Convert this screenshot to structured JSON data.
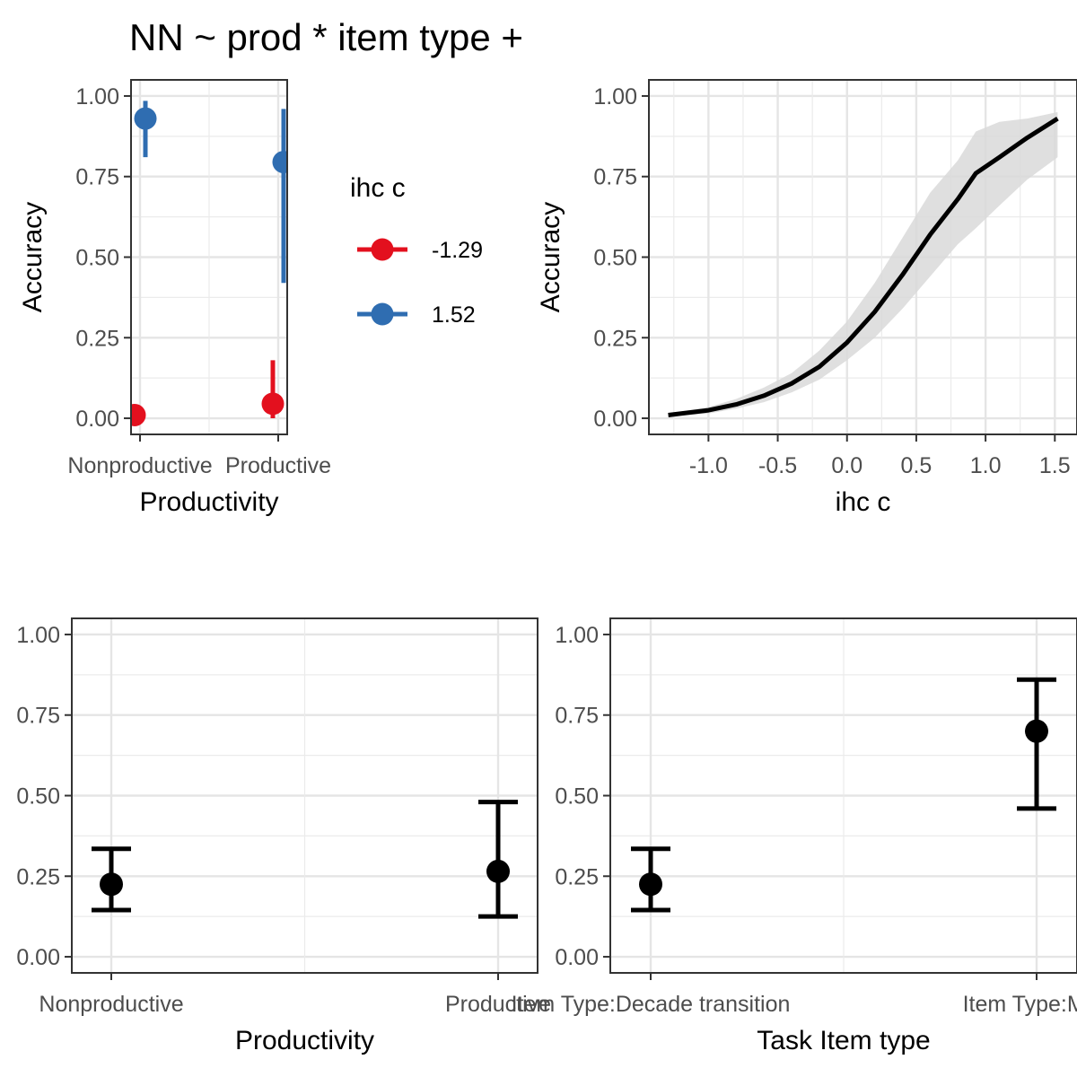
{
  "figure_title": "NN ~ prod * item type +",
  "chart_data": [
    {
      "id": "p1",
      "type": "scatter",
      "subtype": "point-errorbar",
      "xlabel": "Productivity",
      "ylabel": "Accuracy",
      "categories": [
        "Nonproductive",
        "Productive"
      ],
      "ylim": [
        -0.05,
        1.05
      ],
      "yticks": [
        0,
        0.25,
        0.5,
        0.75,
        1
      ],
      "ytick_labels": [
        "0.00",
        "0.25",
        "0.50",
        "0.75",
        "1.00"
      ],
      "grid": true,
      "legend": {
        "title": "ihc c",
        "position": "right"
      },
      "series": [
        {
          "name": "-1.29",
          "color": "#E3101E",
          "points": [
            {
              "x": "Nonproductive",
              "y": 0.01,
              "lo": 0.0,
              "hi": 0.02
            },
            {
              "x": "Productive",
              "y": 0.045,
              "lo": 0.0,
              "hi": 0.18
            }
          ]
        },
        {
          "name": "1.52",
          "color": "#2F6DB1",
          "points": [
            {
              "x": "Nonproductive",
              "y": 0.93,
              "lo": 0.81,
              "hi": 0.985
            },
            {
              "x": "Productive",
              "y": 0.795,
              "lo": 0.42,
              "hi": 0.96
            }
          ]
        }
      ]
    },
    {
      "id": "p2",
      "type": "line",
      "subtype": "line-with-ribbon",
      "xlabel": "ihc c",
      "ylabel": "Accuracy",
      "xlim": [
        -1.43,
        1.66
      ],
      "ylim": [
        -0.05,
        1.05
      ],
      "xticks": [
        -1.0,
        -0.5,
        0.0,
        0.5,
        1.0,
        1.5
      ],
      "xtick_labels": [
        "-1.0",
        "-0.5",
        "0.0",
        "0.5",
        "1.0",
        "1.5"
      ],
      "yticks": [
        0,
        0.25,
        0.5,
        0.75,
        1
      ],
      "ytick_labels": [
        "0.00",
        "0.25",
        "0.50",
        "0.75",
        "1.00"
      ],
      "grid": true,
      "line_color": "#000000",
      "ribbon_color": "#d9d9d9",
      "x": [
        -1.29,
        -1.0,
        -0.8,
        -0.6,
        -0.4,
        -0.2,
        0.0,
        0.2,
        0.4,
        0.6,
        0.8,
        0.93,
        1.1,
        1.3,
        1.52
      ],
      "y": [
        0.01,
        0.025,
        0.043,
        0.07,
        0.108,
        0.16,
        0.235,
        0.33,
        0.445,
        0.57,
        0.68,
        0.76,
        0.81,
        0.87,
        0.93
      ],
      "ymin": [
        0.005,
        0.015,
        0.03,
        0.05,
        0.08,
        0.12,
        0.18,
        0.25,
        0.34,
        0.44,
        0.54,
        0.59,
        0.66,
        0.74,
        0.81
      ],
      "ymax": [
        0.015,
        0.035,
        0.06,
        0.095,
        0.14,
        0.21,
        0.3,
        0.42,
        0.56,
        0.7,
        0.8,
        0.89,
        0.92,
        0.93,
        0.95
      ]
    },
    {
      "id": "p3",
      "type": "scatter",
      "subtype": "point-errorbar",
      "xlabel": "Productivity",
      "ylabel": "",
      "categories": [
        "Nonproductive",
        "Productive"
      ],
      "xtick_labels": [
        "Nonproductive",
        "Productive"
      ],
      "ylim": [
        -0.05,
        1.05
      ],
      "yticks": [
        0,
        0.25,
        0.5,
        0.75,
        1
      ],
      "ytick_labels": [
        "0.00",
        "0.25",
        "0.50",
        "0.75",
        "1.00"
      ],
      "grid": true,
      "color": "#000000",
      "points": [
        {
          "x": "Nonproductive",
          "y": 0.225,
          "lo": 0.145,
          "hi": 0.335
        },
        {
          "x": "Productive",
          "y": 0.265,
          "lo": 0.125,
          "hi": 0.48
        }
      ]
    },
    {
      "id": "p4",
      "type": "scatter",
      "subtype": "point-errorbar",
      "xlabel": "Task Item type",
      "ylabel": "",
      "categories": [
        "Item Type:Decade transition",
        "Item Type:Mid-"
      ],
      "xtick_labels": [
        "Item Type:Decade transition",
        "Item Type:Mid-"
      ],
      "ylim": [
        -0.05,
        1.05
      ],
      "yticks": [
        0,
        0.25,
        0.5,
        0.75,
        1
      ],
      "ytick_labels": [
        "0.00",
        "0.25",
        "0.50",
        "0.75",
        "1.00"
      ],
      "grid": true,
      "color": "#000000",
      "points": [
        {
          "x": "Item Type:Decade transition",
          "y": 0.225,
          "lo": 0.145,
          "hi": 0.335
        },
        {
          "x": "Item Type:Mid-",
          "y": 0.7,
          "lo": 0.46,
          "hi": 0.86
        }
      ]
    }
  ]
}
